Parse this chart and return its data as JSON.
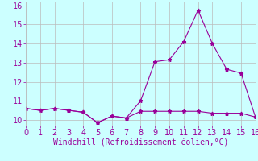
{
  "xlabel": "Windchill (Refroidissement éolien,°C)",
  "xlim": [
    0,
    16
  ],
  "ylim": [
    9.7,
    16.2
  ],
  "xticks": [
    0,
    1,
    2,
    3,
    4,
    5,
    6,
    7,
    8,
    9,
    10,
    11,
    12,
    13,
    14,
    15,
    16
  ],
  "yticks": [
    10,
    11,
    12,
    13,
    14,
    15,
    16
  ],
  "line1_x": [
    0,
    1,
    2,
    3,
    4,
    5,
    6,
    7,
    8,
    9,
    10,
    11,
    12,
    13,
    14,
    15,
    16
  ],
  "line1_y": [
    10.6,
    10.5,
    10.6,
    10.5,
    10.4,
    9.85,
    10.2,
    10.1,
    10.45,
    10.45,
    10.45,
    10.45,
    10.45,
    10.35,
    10.35,
    10.35,
    10.15
  ],
  "line2_x": [
    0,
    1,
    2,
    3,
    4,
    5,
    6,
    7,
    8,
    9,
    10,
    11,
    12,
    13,
    14,
    15,
    16
  ],
  "line2_y": [
    10.6,
    10.5,
    10.6,
    10.5,
    10.4,
    9.85,
    10.2,
    10.1,
    11.0,
    13.05,
    13.15,
    14.1,
    15.75,
    14.0,
    12.65,
    12.45,
    10.15
  ],
  "line_color": "#990099",
  "bg_color": "#ccffff",
  "grid_color": "#bbbbbb",
  "marker": "*",
  "marker_size": 3.5,
  "font_color": "#990099",
  "xlabel_fontsize": 7,
  "tick_fontsize": 7
}
